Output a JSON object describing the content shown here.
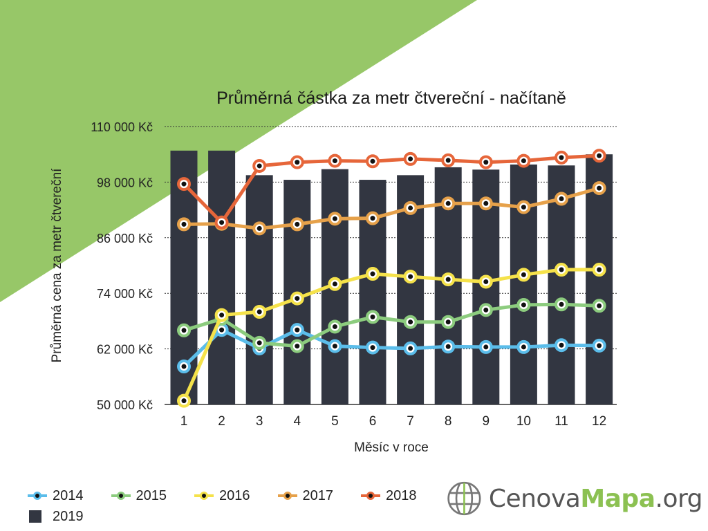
{
  "chart_data": {
    "type": "bar+line",
    "title": "Průměrná částka za metr čtvereční - načítaně",
    "xlabel": "Měsíc v roce",
    "ylabel": "Průměrná cena za metr čtvereční",
    "ylim": [
      50000,
      110000
    ],
    "yticks": [
      50000,
      62000,
      74000,
      86000,
      98000,
      110000
    ],
    "ytick_labels": [
      "50 000 Kč",
      "62 000 Kč",
      "74 000 Kč",
      "86 000 Kč",
      "98 000 Kč",
      "110 000 Kč"
    ],
    "categories": [
      "1",
      "2",
      "3",
      "4",
      "5",
      "6",
      "7",
      "8",
      "9",
      "10",
      "11",
      "12"
    ],
    "grid": "horizontal dotted",
    "bar_series": {
      "name": "2019",
      "color": "#323641",
      "values": [
        104800,
        104800,
        99500,
        98500,
        100800,
        98500,
        99500,
        101200,
        100700,
        101800,
        101600,
        104000
      ]
    },
    "series": [
      {
        "name": "2014",
        "color": "#5bbdea",
        "values": [
          58200,
          66100,
          62100,
          66100,
          62600,
          62300,
          62100,
          62500,
          62400,
          62400,
          62800,
          62700
        ]
      },
      {
        "name": "2015",
        "color": "#8ccc7e",
        "values": [
          66000,
          68500,
          63300,
          62600,
          66800,
          68900,
          67800,
          67800,
          70400,
          71500,
          71600,
          71300
        ]
      },
      {
        "name": "2016",
        "color": "#f5e24a",
        "values": [
          50800,
          69300,
          70000,
          72900,
          76000,
          78200,
          77600,
          77000,
          76500,
          78000,
          79100,
          79100
        ]
      },
      {
        "name": "2017",
        "color": "#e6a14a",
        "values": [
          88900,
          89000,
          88000,
          88900,
          90100,
          90200,
          92400,
          93400,
          93400,
          92600,
          94400,
          96700
        ]
      },
      {
        "name": "2018",
        "color": "#e6663a",
        "values": [
          97600,
          89300,
          101500,
          102300,
          102600,
          102500,
          103000,
          102700,
          102300,
          102600,
          103300,
          103700
        ]
      }
    ]
  },
  "legend": {
    "items": [
      "2014",
      "2015",
      "2016",
      "2017",
      "2018",
      "2019"
    ]
  },
  "logo": {
    "part1": "Cenova",
    "part2": "Mapa",
    "part3": ".org"
  },
  "colors": {
    "background_triangle": "#97c768",
    "accent": "#8cc152"
  }
}
